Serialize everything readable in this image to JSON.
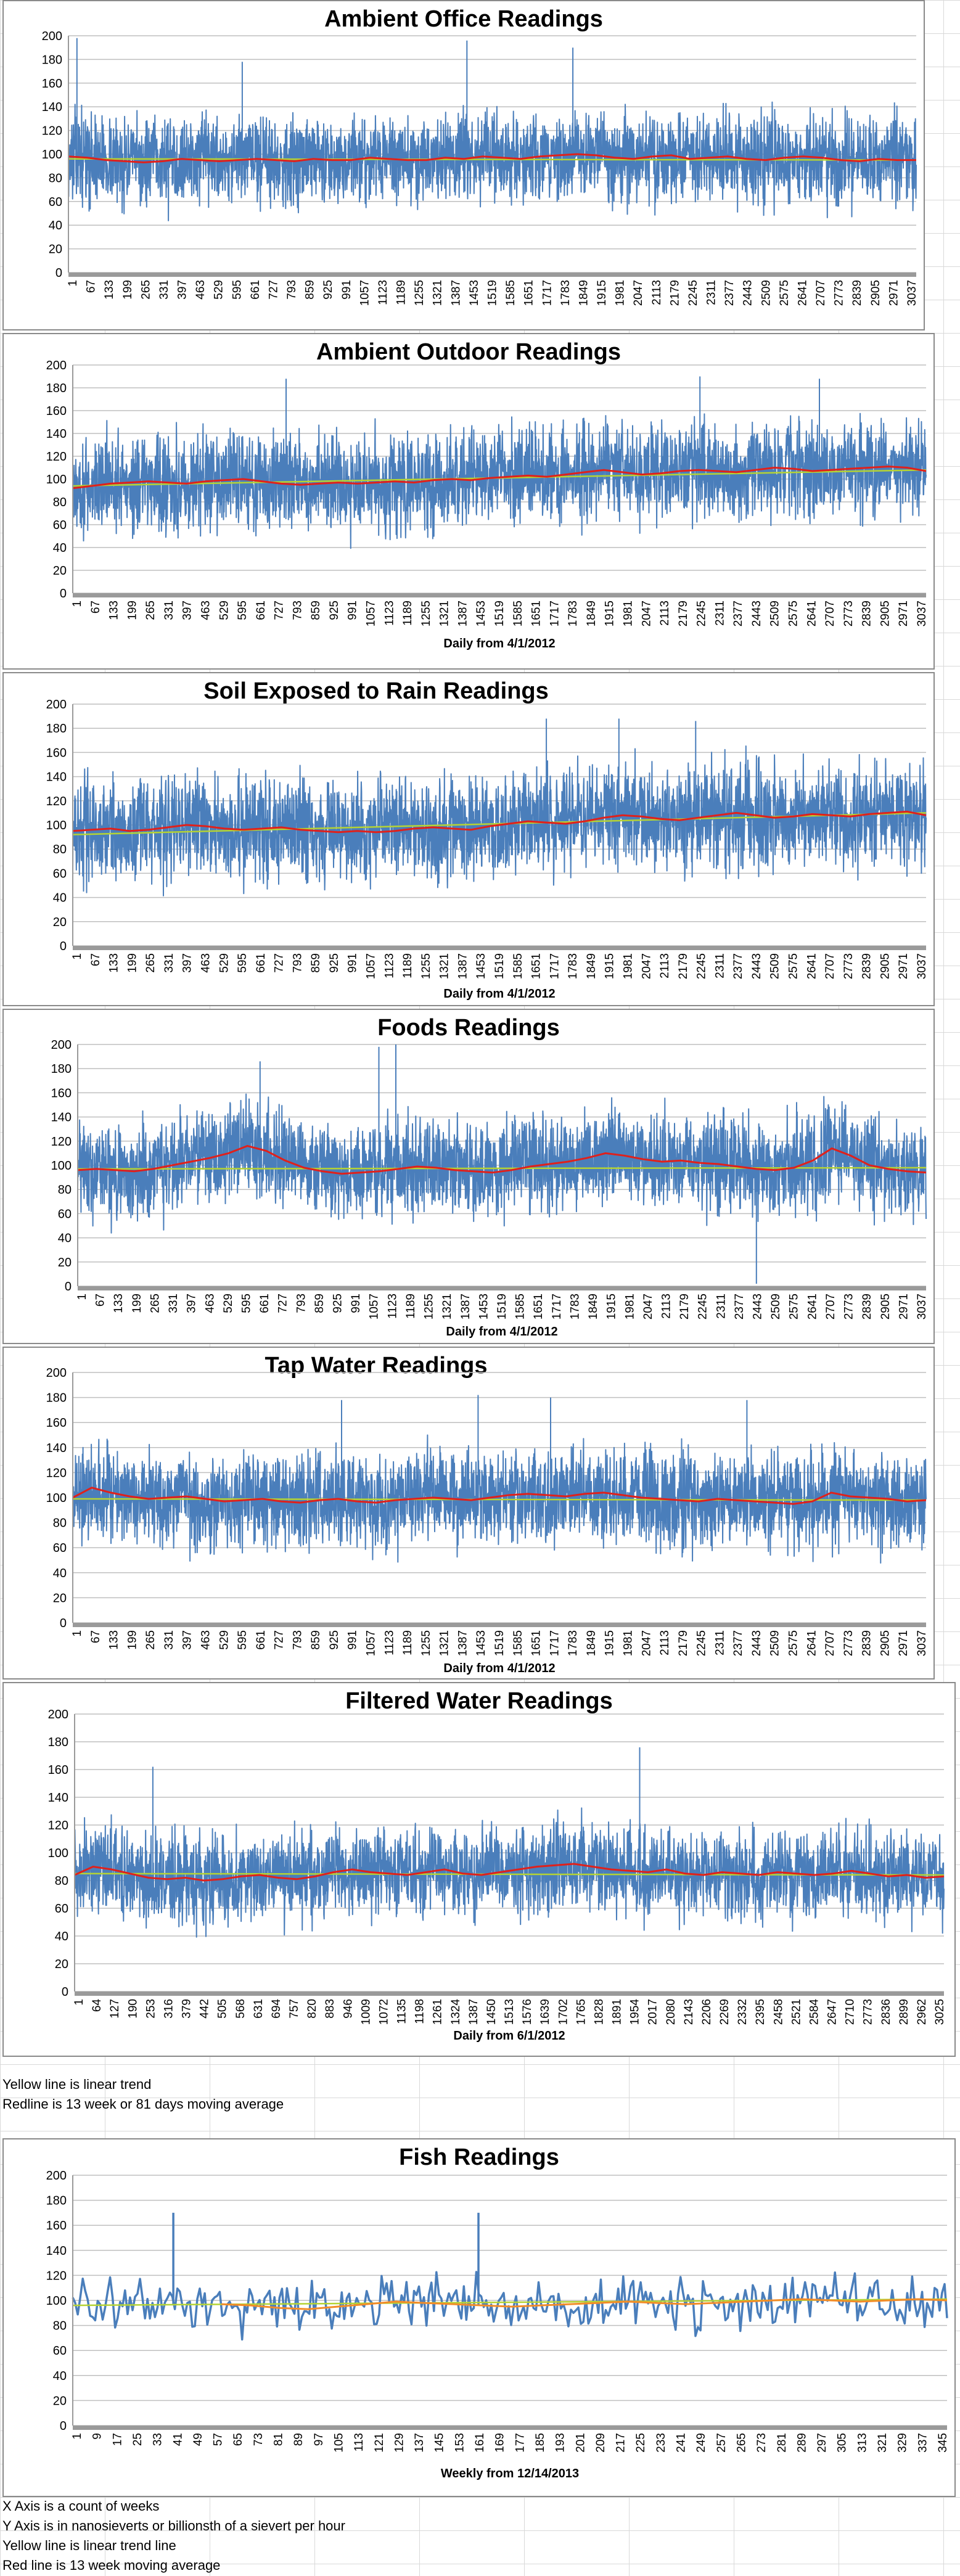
{
  "colors": {
    "series": "#4a7ebb",
    "moving_average": "#e0201b",
    "trend": "#b5d334",
    "moving_average_fish": "#f28c28",
    "grid": "#bfbfbf",
    "axis_band": "#9a9a9a"
  },
  "chart_data": [
    {
      "type": "line",
      "title": "Ambient Office Readings",
      "xlabel": "",
      "ylabel": "",
      "ylim": [
        0,
        200
      ],
      "yticks": [
        0,
        20,
        40,
        60,
        80,
        100,
        120,
        140,
        160,
        180,
        200
      ],
      "xtick_labels": [
        "1",
        "67",
        "133",
        "199",
        "265",
        "331",
        "397",
        "463",
        "529",
        "595",
        "661",
        "727",
        "793",
        "859",
        "925",
        "991",
        "1057",
        "1123",
        "1189",
        "1255",
        "1321",
        "1387",
        "1453",
        "1519",
        "1585",
        "1651",
        "1717",
        "1783",
        "1849",
        "1915",
        "1981",
        "2047",
        "2113",
        "2179",
        "2245",
        "2311",
        "2377",
        "2443",
        "2509",
        "2575",
        "2641",
        "2707",
        "2773",
        "2839",
        "2905",
        "2971",
        "3037"
      ],
      "n_points": 3080,
      "series": [
        {
          "role": "readings",
          "mean": 95,
          "spread": 26
        },
        {
          "role": "moving_average",
          "values": [
            98,
            97,
            95,
            94,
            93,
            94,
            96,
            95,
            94,
            95,
            96,
            95,
            94,
            96,
            95,
            95,
            97,
            96,
            95,
            95,
            97,
            96,
            98,
            97,
            96,
            98,
            99,
            100,
            99,
            97,
            96,
            98,
            99,
            96,
            97,
            98,
            96,
            95,
            97,
            98,
            97,
            95,
            94,
            96,
            95,
            95
          ]
        },
        {
          "role": "linear_trend",
          "start": 96,
          "end": 95
        }
      ],
      "spikes": [
        [
          0.01,
          198
        ],
        [
          0.205,
          178
        ],
        [
          0.47,
          196
        ],
        [
          0.595,
          190
        ]
      ]
    },
    {
      "type": "line",
      "title": "Ambient Outdoor Readings",
      "xlabel": "Daily from 4/1/2012",
      "ylabel": "",
      "ylim": [
        0,
        200
      ],
      "yticks": [
        0,
        20,
        40,
        60,
        80,
        100,
        120,
        140,
        160,
        180,
        200
      ],
      "xtick_labels": [
        "1",
        "67",
        "133",
        "199",
        "265",
        "331",
        "397",
        "463",
        "529",
        "595",
        "661",
        "727",
        "793",
        "859",
        "925",
        "991",
        "1057",
        "1123",
        "1189",
        "1255",
        "1321",
        "1387",
        "1453",
        "1519",
        "1585",
        "1651",
        "1717",
        "1783",
        "1849",
        "1915",
        "1981",
        "2047",
        "2113",
        "2179",
        "2245",
        "2311",
        "2377",
        "2443",
        "2509",
        "2575",
        "2641",
        "2707",
        "2773",
        "2839",
        "2905",
        "2971",
        "3037"
      ],
      "n_points": 3080,
      "series": [
        {
          "role": "readings",
          "mean": 100,
          "spread": 30
        },
        {
          "role": "moving_average",
          "values": [
            92,
            94,
            96,
            97,
            98,
            97,
            96,
            98,
            99,
            100,
            98,
            96,
            95,
            96,
            97,
            96,
            97,
            98,
            97,
            99,
            100,
            99,
            101,
            102,
            103,
            102,
            104,
            106,
            108,
            106,
            104,
            105,
            107,
            108,
            107,
            106,
            108,
            110,
            109,
            107,
            108,
            109,
            110,
            111,
            110,
            107
          ]
        },
        {
          "role": "linear_trend",
          "start": 94,
          "end": 108
        }
      ],
      "spikes": [
        [
          0.25,
          188
        ],
        [
          0.735,
          190
        ],
        [
          0.875,
          188
        ]
      ]
    },
    {
      "type": "line",
      "title": "Soil Exposed to Rain Readings",
      "xlabel": "Daily from 4/1/2012",
      "ylabel": "",
      "ylim": [
        0,
        200
      ],
      "yticks": [
        0,
        20,
        40,
        60,
        80,
        100,
        120,
        140,
        160,
        180,
        200
      ],
      "xtick_labels": [
        "1",
        "67",
        "133",
        "199",
        "265",
        "331",
        "397",
        "463",
        "529",
        "595",
        "661",
        "727",
        "793",
        "859",
        "925",
        "991",
        "1057",
        "1123",
        "1189",
        "1255",
        "1321",
        "1387",
        "1453",
        "1519",
        "1585",
        "1651",
        "1717",
        "1783",
        "1849",
        "1915",
        "1981",
        "2047",
        "2113",
        "2179",
        "2245",
        "2311",
        "2377",
        "2443",
        "2509",
        "2575",
        "2641",
        "2707",
        "2773",
        "2839",
        "2905",
        "2971",
        "3037"
      ],
      "n_points": 3080,
      "series": [
        {
          "role": "readings",
          "mean": 100,
          "spread": 30
        },
        {
          "role": "moving_average",
          "values": [
            95,
            96,
            97,
            95,
            96,
            98,
            100,
            99,
            97,
            96,
            97,
            98,
            96,
            95,
            94,
            95,
            94,
            95,
            97,
            98,
            97,
            96,
            99,
            101,
            103,
            102,
            101,
            103,
            106,
            108,
            107,
            105,
            104,
            106,
            108,
            110,
            108,
            106,
            107,
            109,
            108,
            107,
            109,
            110,
            111,
            108
          ]
        },
        {
          "role": "linear_trend",
          "start": 92,
          "end": 110
        }
      ],
      "spikes": [
        [
          0.555,
          188
        ],
        [
          0.64,
          188
        ],
        [
          0.73,
          186
        ]
      ]
    },
    {
      "type": "line",
      "title": "Foods Readings",
      "xlabel": "Daily from 4/1/2012",
      "ylabel": "",
      "ylim": [
        0,
        200
      ],
      "yticks": [
        0,
        20,
        40,
        60,
        80,
        100,
        120,
        140,
        160,
        180,
        200
      ],
      "xtick_labels": [
        "1",
        "67",
        "133",
        "199",
        "265",
        "331",
        "397",
        "463",
        "529",
        "595",
        "661",
        "727",
        "793",
        "859",
        "925",
        "991",
        "1057",
        "1123",
        "1189",
        "1255",
        "1321",
        "1387",
        "1453",
        "1519",
        "1585",
        "1651",
        "1717",
        "1783",
        "1849",
        "1915",
        "1981",
        "2047",
        "2113",
        "2179",
        "2245",
        "2311",
        "2377",
        "2443",
        "2509",
        "2575",
        "2641",
        "2707",
        "2773",
        "2839",
        "2905",
        "2971",
        "3037"
      ],
      "n_points": 3080,
      "series": [
        {
          "role": "readings",
          "mean": 98,
          "spread": 28
        },
        {
          "role": "moving_average",
          "values": [
            96,
            97,
            96,
            95,
            97,
            100,
            103,
            106,
            110,
            116,
            112,
            104,
            98,
            95,
            93,
            94,
            95,
            97,
            99,
            98,
            96,
            95,
            94,
            96,
            99,
            101,
            103,
            106,
            110,
            108,
            105,
            103,
            104,
            102,
            101,
            99,
            97,
            96,
            98,
            104,
            114,
            108,
            100,
            97,
            95,
            94
          ]
        },
        {
          "role": "linear_trend",
          "start": 97,
          "end": 98
        }
      ],
      "spikes": [
        [
          0.215,
          186
        ],
        [
          0.355,
          198
        ],
        [
          0.375,
          200
        ],
        [
          0.8,
          2
        ]
      ]
    },
    {
      "type": "line",
      "title": "Tap Water Readings",
      "xlabel": "Daily from 4/1/2012",
      "ylabel": "",
      "ylim": [
        0,
        200
      ],
      "yticks": [
        0,
        20,
        40,
        60,
        80,
        100,
        120,
        140,
        160,
        180,
        200
      ],
      "xtick_labels": [
        "1",
        "67",
        "133",
        "199",
        "265",
        "331",
        "397",
        "463",
        "529",
        "595",
        "661",
        "727",
        "793",
        "859",
        "925",
        "991",
        "1057",
        "1123",
        "1189",
        "1255",
        "1321",
        "1387",
        "1453",
        "1519",
        "1585",
        "1651",
        "1717",
        "1783",
        "1849",
        "1915",
        "1981",
        "2047",
        "2113",
        "2179",
        "2245",
        "2311",
        "2377",
        "2443",
        "2509",
        "2575",
        "2641",
        "2707",
        "2773",
        "2839",
        "2905",
        "2971",
        "3037"
      ],
      "n_points": 3080,
      "series": [
        {
          "role": "readings",
          "mean": 99,
          "spread": 27
        },
        {
          "role": "moving_average",
          "values": [
            100,
            108,
            104,
            101,
            99,
            100,
            101,
            99,
            97,
            98,
            99,
            97,
            96,
            98,
            99,
            97,
            96,
            98,
            99,
            100,
            99,
            98,
            100,
            102,
            103,
            102,
            101,
            103,
            104,
            102,
            100,
            99,
            98,
            97,
            99,
            98,
            97,
            96,
            95,
            97,
            104,
            101,
            100,
            99,
            97,
            98
          ]
        },
        {
          "role": "linear_trend",
          "start": 99,
          "end": 98
        }
      ],
      "spikes": [
        [
          0.475,
          182
        ],
        [
          0.56,
          180
        ],
        [
          0.315,
          178
        ],
        [
          0.79,
          178
        ]
      ]
    },
    {
      "type": "line",
      "title": "Filtered Water Readings",
      "xlabel": "Daily from 6/1/2012",
      "ylabel": "",
      "ylim": [
        0,
        200
      ],
      "yticks": [
        0,
        20,
        40,
        60,
        80,
        100,
        120,
        140,
        160,
        180,
        200
      ],
      "xtick_labels": [
        "1",
        "64",
        "127",
        "190",
        "253",
        "316",
        "379",
        "442",
        "505",
        "568",
        "631",
        "694",
        "757",
        "820",
        "883",
        "946",
        "1009",
        "1072",
        "1135",
        "1198",
        "1261",
        "1324",
        "1387",
        "1450",
        "1513",
        "1576",
        "1639",
        "1702",
        "1765",
        "1828",
        "1891",
        "1954",
        "2017",
        "2080",
        "2143",
        "2206",
        "2269",
        "2332",
        "2395",
        "2458",
        "2521",
        "2584",
        "2647",
        "2710",
        "2773",
        "2836",
        "2899",
        "2962",
        "3025"
      ],
      "n_points": 3060,
      "series": [
        {
          "role": "readings",
          "mean": 84,
          "spread": 23
        },
        {
          "role": "moving_average",
          "values": [
            84,
            90,
            88,
            85,
            82,
            81,
            82,
            80,
            81,
            83,
            84,
            82,
            81,
            83,
            86,
            88,
            86,
            85,
            84,
            86,
            88,
            85,
            84,
            86,
            88,
            90,
            91,
            92,
            90,
            88,
            87,
            86,
            88,
            85,
            84,
            86,
            85,
            84,
            86,
            85,
            84,
            85,
            87,
            85,
            83,
            84,
            82,
            83
          ]
        },
        {
          "role": "linear_trend",
          "start": 85,
          "end": 84
        }
      ],
      "spikes": [
        [
          0.09,
          162
        ],
        [
          0.65,
          176
        ]
      ]
    },
    {
      "type": "line",
      "title": "Fish Readings",
      "xlabel": "Weekly from 12/14/2013",
      "ylabel": "",
      "ylim": [
        0,
        200
      ],
      "yticks": [
        0,
        20,
        40,
        60,
        80,
        100,
        120,
        140,
        160,
        180,
        200
      ],
      "xtick_labels": [
        "1",
        "9",
        "17",
        "25",
        "33",
        "41",
        "49",
        "57",
        "65",
        "73",
        "81",
        "89",
        "97",
        "105",
        "113",
        "121",
        "129",
        "137",
        "145",
        "153",
        "161",
        "169",
        "177",
        "185",
        "193",
        "201",
        "209",
        "217",
        "225",
        "233",
        "241",
        "249",
        "257",
        "265",
        "273",
        "281",
        "289",
        "297",
        "305",
        "313",
        "321",
        "329",
        "337",
        "345"
      ],
      "n_points": 352,
      "series": [
        {
          "role": "readings",
          "mean": 97,
          "spread": 15
        },
        {
          "role": "moving_average",
          "start_fraction": 0.17,
          "values": [
            97,
            96,
            94,
            93,
            95,
            97,
            99,
            98,
            97,
            96,
            95,
            96,
            97,
            98,
            99,
            98,
            97,
            98,
            99,
            100,
            101,
            100,
            99,
            100,
            101,
            100
          ]
        },
        {
          "role": "linear_trend",
          "start": 96,
          "end": 101
        }
      ],
      "spikes": [
        [
          0.115,
          170
        ],
        [
          0.464,
          170
        ]
      ]
    }
  ],
  "notes": {
    "legend_line_1": "Yellow line is linear trend",
    "legend_line_2": "Redline is 13 week or 81 days moving average",
    "fish_note_1": "X Axis is a count of weeks",
    "fish_note_2": "Y Axis is in nanosieverts or billionsth of a sievert per hour",
    "fish_note_3": "Yellow line is linear trend line",
    "fish_note_4": "Red line is 13 week moving average"
  }
}
